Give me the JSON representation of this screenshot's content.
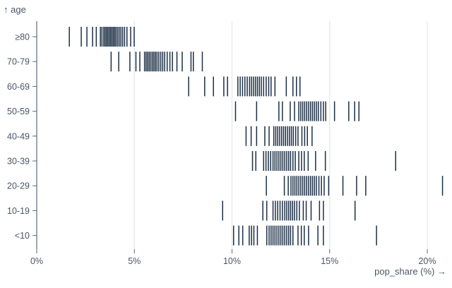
{
  "chart_data": {
    "type": "tick",
    "variant": "barcode-strip-plot",
    "title": "",
    "xlabel": "pop_share (%) →",
    "ylabel": "↑ age",
    "xlim": [
      0,
      21
    ],
    "x_tick_values": [
      0,
      5,
      10,
      15,
      20
    ],
    "x_tick_labels": [
      "0%",
      "5%",
      "10%",
      "15%",
      "20%"
    ],
    "grid": true,
    "legend": false,
    "categories": [
      "≥80",
      "70-79",
      "60-69",
      "50-59",
      "40-49",
      "30-39",
      "20-29",
      "10-19",
      "<10"
    ],
    "series": [
      {
        "name": "≥80",
        "values": [
          1.67,
          2.28,
          2.57,
          2.86,
          3.05,
          3.26,
          3.34,
          3.43,
          3.5,
          3.57,
          3.64,
          3.71,
          3.78,
          3.85,
          3.92,
          3.99,
          4.06,
          4.14,
          4.22,
          4.31,
          4.4,
          4.5,
          4.62,
          4.81,
          4.99
        ]
      },
      {
        "name": "70-79",
        "values": [
          3.81,
          4.2,
          4.77,
          5.08,
          5.28,
          5.52,
          5.6,
          5.68,
          5.76,
          5.84,
          5.92,
          6.0,
          6.08,
          6.16,
          6.25,
          6.35,
          6.45,
          6.55,
          6.68,
          6.82,
          6.95,
          7.18,
          7.45,
          7.9,
          8.02,
          8.48
        ]
      },
      {
        "name": "60-69",
        "values": [
          7.78,
          8.6,
          9.05,
          9.58,
          9.77,
          10.3,
          10.42,
          10.54,
          10.66,
          10.78,
          10.9,
          11.0,
          11.1,
          11.2,
          11.3,
          11.4,
          11.5,
          11.62,
          11.75,
          11.88,
          12.0,
          12.2,
          12.78,
          13.12,
          13.3,
          13.48
        ]
      },
      {
        "name": "50-59",
        "values": [
          10.18,
          11.26,
          12.4,
          12.58,
          12.98,
          13.2,
          13.42,
          13.52,
          13.62,
          13.72,
          13.82,
          13.92,
          14.02,
          14.12,
          14.22,
          14.32,
          14.42,
          14.55,
          14.68,
          14.8,
          15.25,
          15.98,
          16.28,
          16.5
        ]
      },
      {
        "name": "40-49",
        "values": [
          10.72,
          10.98,
          11.26,
          11.68,
          11.9,
          12.14,
          12.24,
          12.34,
          12.44,
          12.54,
          12.64,
          12.74,
          12.84,
          12.94,
          13.04,
          13.14,
          13.26,
          13.38,
          13.58,
          13.72,
          13.86,
          14.1
        ]
      },
      {
        "name": "30-39",
        "values": [
          11.05,
          11.22,
          11.62,
          11.74,
          11.86,
          11.98,
          12.1,
          12.2,
          12.3,
          12.4,
          12.5,
          12.6,
          12.7,
          12.8,
          12.9,
          13.0,
          13.12,
          13.24,
          13.42,
          13.56,
          13.7,
          13.9,
          14.28,
          14.78,
          18.38
        ]
      },
      {
        "name": "20-29",
        "values": [
          11.76,
          12.68,
          12.88,
          13.02,
          13.12,
          13.22,
          13.32,
          13.42,
          13.52,
          13.62,
          13.72,
          13.82,
          13.92,
          14.02,
          14.12,
          14.22,
          14.32,
          14.45,
          14.58,
          14.72,
          14.95,
          15.68,
          16.38,
          16.85,
          20.78
        ]
      },
      {
        "name": "10-19",
        "values": [
          9.52,
          11.58,
          11.78,
          12.1,
          12.22,
          12.34,
          12.46,
          12.58,
          12.7,
          12.8,
          12.9,
          13.0,
          13.1,
          13.2,
          13.32,
          13.45,
          13.65,
          13.8,
          14.05,
          14.48,
          14.68,
          16.3
        ]
      },
      {
        "name": "<10",
        "values": [
          10.08,
          10.35,
          10.55,
          10.88,
          11.0,
          11.12,
          11.3,
          11.78,
          11.9,
          12.0,
          12.1,
          12.2,
          12.3,
          12.4,
          12.5,
          12.6,
          12.7,
          12.8,
          12.9,
          13.0,
          13.12,
          13.38,
          13.55,
          13.7,
          13.92,
          14.4,
          14.68,
          17.4
        ]
      }
    ],
    "colors": {
      "tick": "#1c2f45",
      "axis_text": "#4a5668",
      "axis_line": "#5b6b7c",
      "grid_line": "#e4e7eb",
      "background": "#ffffff"
    }
  }
}
